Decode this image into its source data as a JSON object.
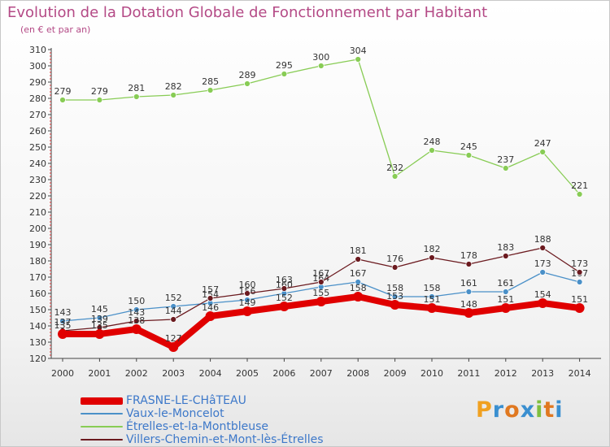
{
  "chart_data": {
    "type": "line",
    "title": "Evolution de la Dotation Globale de Fonctionnement par Habitant",
    "subtitle": "(en € et par an)",
    "x": [
      "2000",
      "2001",
      "2002",
      "2003",
      "2004",
      "2005",
      "2006",
      "2007",
      "2008",
      "2009",
      "2010",
      "2011",
      "2012",
      "2013",
      "2014"
    ],
    "ylim": [
      120,
      310
    ],
    "yticks": [
      120,
      130,
      140,
      150,
      160,
      170,
      180,
      190,
      200,
      210,
      220,
      230,
      240,
      250,
      260,
      270,
      280,
      290,
      300,
      310
    ],
    "grid": false,
    "legend_position": "bottom-left",
    "series": [
      {
        "name": "FRASNE-LE-CHâTEAU",
        "color": "#e00000",
        "values": [
          135,
          135,
          138,
          127,
          146,
          149,
          152,
          155,
          158,
          153,
          151,
          148,
          151,
          154,
          151
        ]
      },
      {
        "name": "Vaux-le-Moncelot",
        "color": "#4a90c8",
        "values": [
          143,
          145,
          150,
          152,
          154,
          156,
          160,
          164,
          167,
          158,
          158,
          161,
          161,
          173,
          167
        ]
      },
      {
        "name": "Étrelles-et-la-Montbleuse",
        "color": "#88cc55",
        "values": [
          279,
          279,
          281,
          282,
          285,
          289,
          295,
          300,
          304,
          232,
          248,
          245,
          237,
          247,
          221
        ]
      },
      {
        "name": "Villers-Chemin-et-Mont-lès-Étrelles",
        "color": "#6b1a1f",
        "values": [
          137,
          139,
          143,
          144,
          157,
          160,
          163,
          167,
          181,
          176,
          182,
          178,
          183,
          188,
          173
        ]
      }
    ]
  },
  "brand": {
    "text": "Proxiti"
  }
}
